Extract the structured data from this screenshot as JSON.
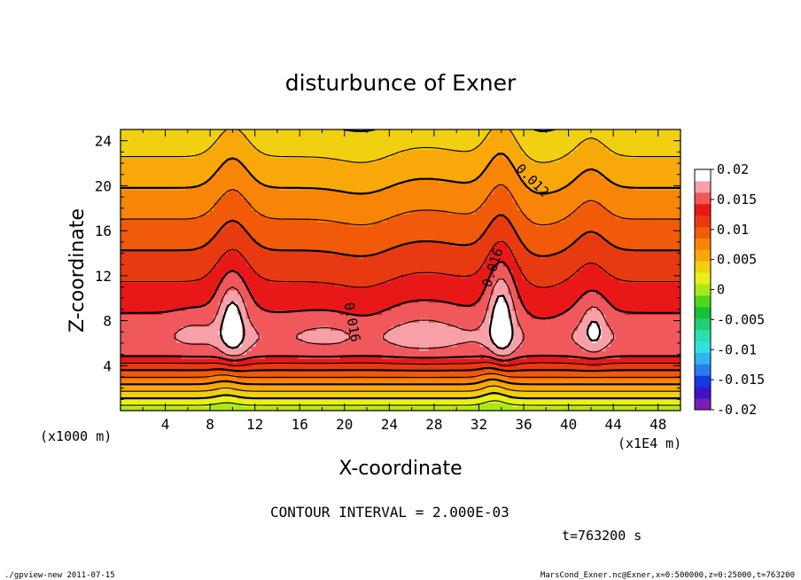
{
  "chart_data": {
    "type": "contour",
    "title": "disturbunce of Exner",
    "xlabel": "X-coordinate",
    "ylabel": "Z-coordinate",
    "x_unit_left": "(x1000 m)",
    "x_unit_right": "(x1E4 m)",
    "x_ticks": [
      "4",
      "8",
      "12",
      "16",
      "20",
      "24",
      "28",
      "32",
      "36",
      "40",
      "44",
      "48"
    ],
    "x_tick_values": [
      4,
      8,
      12,
      16,
      20,
      24,
      28,
      32,
      36,
      40,
      44,
      48
    ],
    "xlim": [
      0,
      50
    ],
    "y_ticks": [
      "4",
      "8",
      "12",
      "16",
      "20",
      "24"
    ],
    "y_tick_values": [
      4,
      8,
      12,
      16,
      20,
      24
    ],
    "ylim": [
      0,
      25
    ],
    "contour_interval_text": "CONTOUR INTERVAL = 2.000E-03",
    "time_text": "t=763200 s",
    "contour_labels": [
      {
        "text": "0.012",
        "x": 36.5,
        "z": 20.2,
        "angle": 45
      },
      {
        "text": "0.016",
        "x": 33.6,
        "z": 12.6,
        "angle": -72
      },
      {
        "text": "0.016",
        "x": 20.3,
        "z": 7.8,
        "angle": 80
      }
    ],
    "colorbar": {
      "ticks": [
        "0.02",
        "0.015",
        "0.01",
        "0.005",
        "0",
        "-0.005",
        "-0.01",
        "-0.015",
        "-0.02"
      ],
      "levels": [
        -0.02,
        -0.018,
        -0.016,
        -0.014,
        -0.012,
        -0.01,
        -0.008,
        -0.006,
        -0.004,
        -0.002,
        0,
        0.002,
        0.004,
        0.006,
        0.008,
        0.01,
        0.012,
        0.014,
        0.016,
        0.018,
        0.02
      ],
      "colors": [
        "#7a1fb4",
        "#3a14c8",
        "#1438e6",
        "#2b7cf0",
        "#2fb4f0",
        "#32e0e0",
        "#28e0b0",
        "#1ed070",
        "#18c038",
        "#50d818",
        "#a8e818",
        "#e8f018",
        "#f0d010",
        "#f8a808",
        "#f88408",
        "#f05a08",
        "#e83a10",
        "#e81818",
        "#f0585c",
        "#f8a0a8",
        "#ffffff"
      ]
    }
  },
  "footer": {
    "left": "./gpview-new   2011-07-15",
    "right": "MarsCond_Exner.nc@Exner,x=0:500000,z=0:25000,t=763200"
  },
  "colors": {
    "background": "#ffffff",
    "axis": "#000000",
    "contour": "#000000"
  }
}
